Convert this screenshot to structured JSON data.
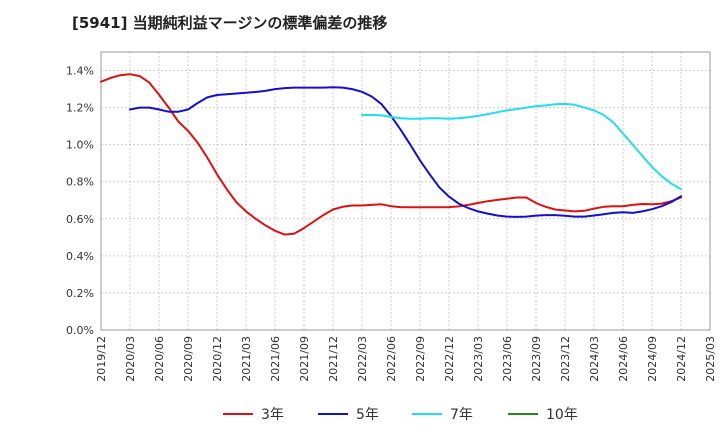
{
  "chart_data": {
    "type": "line",
    "title": "[5941]  当期純利益マージンの標準偏差の推移",
    "xlabel": "",
    "ylabel": "",
    "ylim": [
      0,
      1.5
    ],
    "grid": true,
    "legend_position": "bottom",
    "y_ticks": [
      "0.0%",
      "0.2%",
      "0.4%",
      "0.6%",
      "0.8%",
      "1.0%",
      "1.2%",
      "1.4%"
    ],
    "x_ticks": [
      "2019/12",
      "2020/03",
      "2020/06",
      "2020/09",
      "2020/12",
      "2021/03",
      "2021/06",
      "2021/09",
      "2021/12",
      "2022/03",
      "2022/06",
      "2022/09",
      "2022/12",
      "2023/03",
      "2023/06",
      "2023/09",
      "2023/12",
      "2024/03",
      "2024/06",
      "2024/09",
      "2024/12",
      "2025/03"
    ],
    "series": [
      {
        "name": "3年",
        "color": "#dd1111",
        "points": [
          [
            "2019/12",
            1.34
          ],
          [
            "2020/01",
            1.36
          ],
          [
            "2020/02",
            1.375
          ],
          [
            "2020/03",
            1.38
          ],
          [
            "2020/04",
            1.37
          ],
          [
            "2020/05",
            1.335
          ],
          [
            "2020/06",
            1.27
          ],
          [
            "2020/07",
            1.2
          ],
          [
            "2020/08",
            1.125
          ],
          [
            "2020/09",
            1.075
          ],
          [
            "2020/10",
            1.01
          ],
          [
            "2020/11",
            0.93
          ],
          [
            "2020/12",
            0.84
          ],
          [
            "2021/01",
            0.76
          ],
          [
            "2021/02",
            0.69
          ],
          [
            "2021/03",
            0.64
          ],
          [
            "2021/04",
            0.6
          ],
          [
            "2021/05",
            0.565
          ],
          [
            "2021/06",
            0.535
          ],
          [
            "2021/07",
            0.515
          ],
          [
            "2021/08",
            0.52
          ],
          [
            "2021/09",
            0.55
          ],
          [
            "2021/10",
            0.585
          ],
          [
            "2021/11",
            0.62
          ],
          [
            "2021/12",
            0.65
          ],
          [
            "2022/01",
            0.665
          ],
          [
            "2022/02",
            0.672
          ],
          [
            "2022/03",
            0.672
          ],
          [
            "2022/04",
            0.675
          ],
          [
            "2022/05",
            0.678
          ],
          [
            "2022/06",
            0.668
          ],
          [
            "2022/07",
            0.663
          ],
          [
            "2022/08",
            0.662
          ],
          [
            "2022/09",
            0.662
          ],
          [
            "2022/10",
            0.662
          ],
          [
            "2022/11",
            0.662
          ],
          [
            "2022/12",
            0.663
          ],
          [
            "2023/01",
            0.667
          ],
          [
            "2023/02",
            0.675
          ],
          [
            "2023/03",
            0.685
          ],
          [
            "2023/04",
            0.695
          ],
          [
            "2023/05",
            0.702
          ],
          [
            "2023/06",
            0.708
          ],
          [
            "2023/07",
            0.715
          ],
          [
            "2023/08",
            0.715
          ],
          [
            "2023/09",
            0.685
          ],
          [
            "2023/10",
            0.665
          ],
          [
            "2023/11",
            0.65
          ],
          [
            "2023/12",
            0.645
          ],
          [
            "2024/01",
            0.64
          ],
          [
            "2024/02",
            0.643
          ],
          [
            "2024/03",
            0.655
          ],
          [
            "2024/04",
            0.665
          ],
          [
            "2024/05",
            0.668
          ],
          [
            "2024/06",
            0.668
          ],
          [
            "2024/07",
            0.675
          ],
          [
            "2024/08",
            0.68
          ],
          [
            "2024/09",
            0.678
          ],
          [
            "2024/10",
            0.682
          ],
          [
            "2024/11",
            0.695
          ],
          [
            "2024/12",
            0.715
          ]
        ]
      },
      {
        "name": "5年",
        "color": "#1111cc",
        "points": [
          [
            "2020/03",
            1.19
          ],
          [
            "2020/04",
            1.2
          ],
          [
            "2020/05",
            1.2
          ],
          [
            "2020/06",
            1.19
          ],
          [
            "2020/07",
            1.178
          ],
          [
            "2020/08",
            1.178
          ],
          [
            "2020/09",
            1.19
          ],
          [
            "2020/10",
            1.225
          ],
          [
            "2020/11",
            1.255
          ],
          [
            "2020/12",
            1.268
          ],
          [
            "2021/01",
            1.272
          ],
          [
            "2021/02",
            1.276
          ],
          [
            "2021/03",
            1.28
          ],
          [
            "2021/04",
            1.284
          ],
          [
            "2021/05",
            1.29
          ],
          [
            "2021/06",
            1.3
          ],
          [
            "2021/07",
            1.305
          ],
          [
            "2021/08",
            1.308
          ],
          [
            "2021/09",
            1.308
          ],
          [
            "2021/10",
            1.308
          ],
          [
            "2021/11",
            1.308
          ],
          [
            "2021/12",
            1.31
          ],
          [
            "2022/01",
            1.308
          ],
          [
            "2022/02",
            1.3
          ],
          [
            "2022/03",
            1.285
          ],
          [
            "2022/04",
            1.26
          ],
          [
            "2022/05",
            1.22
          ],
          [
            "2022/06",
            1.155
          ],
          [
            "2022/07",
            1.08
          ],
          [
            "2022/08",
            1.0
          ],
          [
            "2022/09",
            0.915
          ],
          [
            "2022/10",
            0.84
          ],
          [
            "2022/11",
            0.77
          ],
          [
            "2022/12",
            0.72
          ],
          [
            "2023/01",
            0.682
          ],
          [
            "2023/02",
            0.658
          ],
          [
            "2023/03",
            0.64
          ],
          [
            "2023/04",
            0.628
          ],
          [
            "2023/05",
            0.618
          ],
          [
            "2023/06",
            0.612
          ],
          [
            "2023/07",
            0.61
          ],
          [
            "2023/08",
            0.612
          ],
          [
            "2023/09",
            0.617
          ],
          [
            "2023/10",
            0.62
          ],
          [
            "2023/11",
            0.62
          ],
          [
            "2023/12",
            0.616
          ],
          [
            "2024/01",
            0.612
          ],
          [
            "2024/02",
            0.612
          ],
          [
            "2024/03",
            0.618
          ],
          [
            "2024/04",
            0.625
          ],
          [
            "2024/05",
            0.632
          ],
          [
            "2024/06",
            0.635
          ],
          [
            "2024/07",
            0.632
          ],
          [
            "2024/08",
            0.64
          ],
          [
            "2024/09",
            0.652
          ],
          [
            "2024/10",
            0.668
          ],
          [
            "2024/11",
            0.69
          ],
          [
            "2024/12",
            0.722
          ]
        ]
      },
      {
        "name": "7年",
        "color": "#22ddee",
        "points": [
          [
            "2022/03",
            1.16
          ],
          [
            "2022/04",
            1.16
          ],
          [
            "2022/05",
            1.158
          ],
          [
            "2022/06",
            1.15
          ],
          [
            "2022/07",
            1.142
          ],
          [
            "2022/08",
            1.14
          ],
          [
            "2022/09",
            1.14
          ],
          [
            "2022/10",
            1.142
          ],
          [
            "2022/11",
            1.142
          ],
          [
            "2022/12",
            1.14
          ],
          [
            "2023/01",
            1.142
          ],
          [
            "2023/02",
            1.148
          ],
          [
            "2023/03",
            1.155
          ],
          [
            "2023/04",
            1.165
          ],
          [
            "2023/05",
            1.175
          ],
          [
            "2023/06",
            1.185
          ],
          [
            "2023/07",
            1.192
          ],
          [
            "2023/08",
            1.2
          ],
          [
            "2023/09",
            1.208
          ],
          [
            "2023/10",
            1.212
          ],
          [
            "2023/11",
            1.218
          ],
          [
            "2023/12",
            1.22
          ],
          [
            "2024/01",
            1.215
          ],
          [
            "2024/02",
            1.2
          ],
          [
            "2024/03",
            1.185
          ],
          [
            "2024/04",
            1.16
          ],
          [
            "2024/05",
            1.12
          ],
          [
            "2024/06",
            1.06
          ],
          [
            "2024/07",
            1.0
          ],
          [
            "2024/08",
            0.94
          ],
          [
            "2024/09",
            0.88
          ],
          [
            "2024/10",
            0.83
          ],
          [
            "2024/11",
            0.79
          ],
          [
            "2024/12",
            0.76
          ]
        ]
      },
      {
        "name": "10年",
        "color": "#228822",
        "points": []
      }
    ]
  }
}
